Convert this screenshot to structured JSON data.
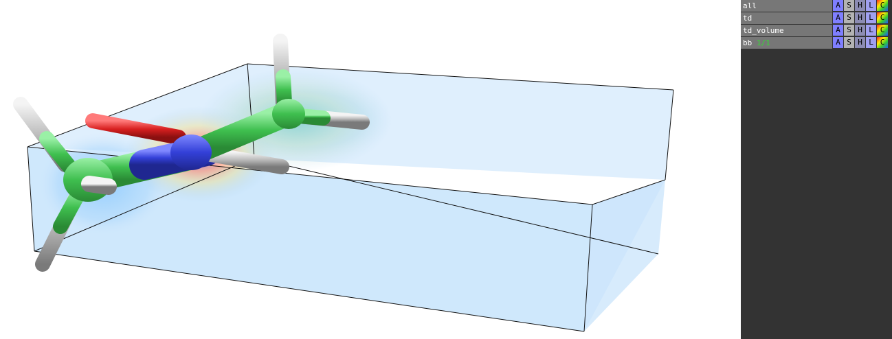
{
  "viewer": {
    "name": "molecular-volume-viewport"
  },
  "object_panel": {
    "objects": [
      {
        "name": "all",
        "state": ""
      },
      {
        "name": "td",
        "state": ""
      },
      {
        "name": "td_volume",
        "state": ""
      },
      {
        "name": "bb",
        "state": "1/1"
      }
    ],
    "buttons": {
      "a": "A",
      "s": "S",
      "h": "H",
      "l": "L",
      "c": "C"
    }
  },
  "colors": {
    "panel_bg": "#333333",
    "row_bg": "#777777",
    "volume_fill": "#bfe0fb",
    "carbon": "#44cc55",
    "nitrogen": "#3344dd",
    "oxygen": "#dd2222",
    "hydrogen": "#cccccc",
    "state_text": "#33dd33"
  }
}
